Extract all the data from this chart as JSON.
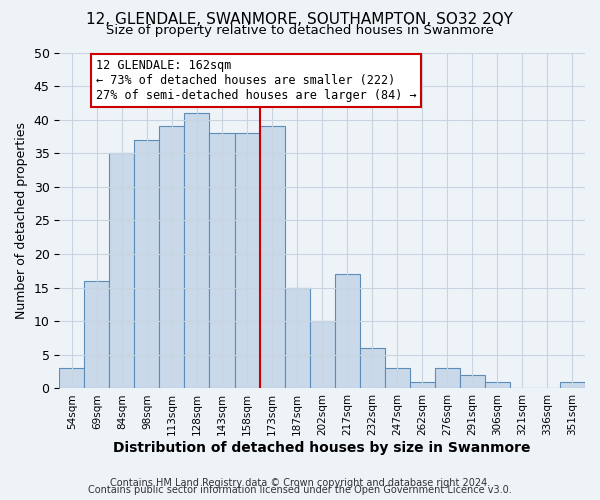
{
  "title": "12, GLENDALE, SWANMORE, SOUTHAMPTON, SO32 2QY",
  "subtitle": "Size of property relative to detached houses in Swanmore",
  "xlabel": "Distribution of detached houses by size in Swanmore",
  "ylabel": "Number of detached properties",
  "bar_labels": [
    "54sqm",
    "69sqm",
    "84sqm",
    "98sqm",
    "113sqm",
    "128sqm",
    "143sqm",
    "158sqm",
    "173sqm",
    "187sqm",
    "202sqm",
    "217sqm",
    "232sqm",
    "247sqm",
    "262sqm",
    "276sqm",
    "291sqm",
    "306sqm",
    "321sqm",
    "336sqm",
    "351sqm"
  ],
  "bar_heights": [
    3,
    16,
    35,
    37,
    39,
    41,
    38,
    38,
    39,
    15,
    10,
    17,
    6,
    3,
    1,
    3,
    2,
    1,
    0,
    0,
    1
  ],
  "bar_color": "#c9d9ea",
  "bar_edge_color": "#5b8db8",
  "vline_color": "#cc0000",
  "annotation_line1": "12 GLENDALE: 162sqm",
  "annotation_line2": "← 73% of detached houses are smaller (222)",
  "annotation_line3": "27% of semi-detached houses are larger (84) →",
  "annotation_box_edge_color": "#cc0000",
  "annotation_box_face_color": "#ffffff",
  "ylim": [
    0,
    50
  ],
  "yticks": [
    0,
    5,
    10,
    15,
    20,
    25,
    30,
    35,
    40,
    45,
    50
  ],
  "grid_color": "#c8d4e0",
  "background_color": "#eef3f8",
  "footer_line1": "Contains HM Land Registry data © Crown copyright and database right 2024.",
  "footer_line2": "Contains public sector information licensed under the Open Government Licence v3.0.",
  "title_fontsize": 11,
  "subtitle_fontsize": 9.5,
  "xlabel_fontsize": 10,
  "ylabel_fontsize": 9,
  "annotation_fontsize": 8.5,
  "footer_fontsize": 7
}
